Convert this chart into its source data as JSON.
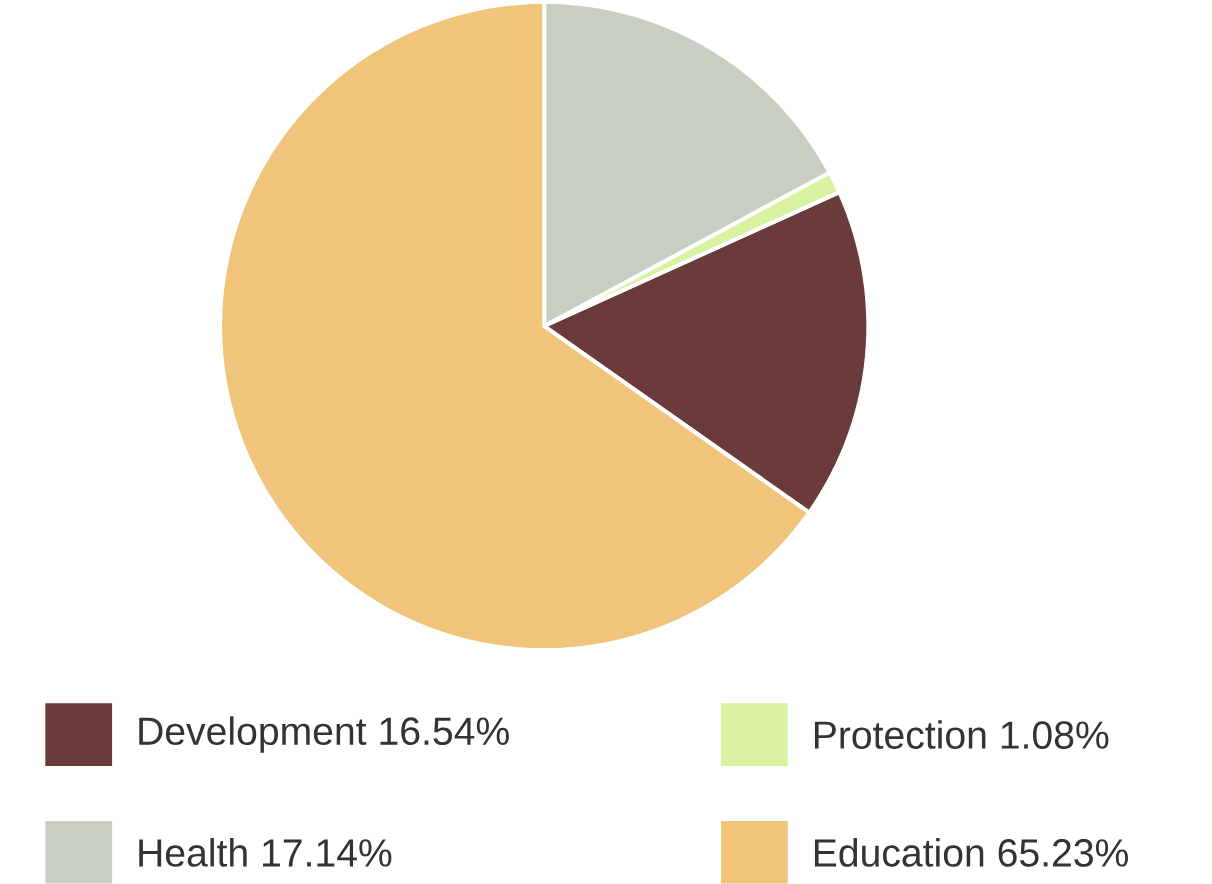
{
  "chart_data": {
    "type": "pie",
    "categories": [
      "Development",
      "Protection",
      "Health",
      "Education"
    ],
    "values": [
      16.54,
      1.08,
      17.14,
      65.23
    ],
    "value_labels": [
      "16.54%",
      "1.08%",
      "17.14%",
      "65.23%"
    ],
    "colors": [
      "#6b3a3a",
      "#d8f2a2",
      "#c6cfc2",
      "#f0c47a"
    ],
    "legend": "bottom"
  }
}
